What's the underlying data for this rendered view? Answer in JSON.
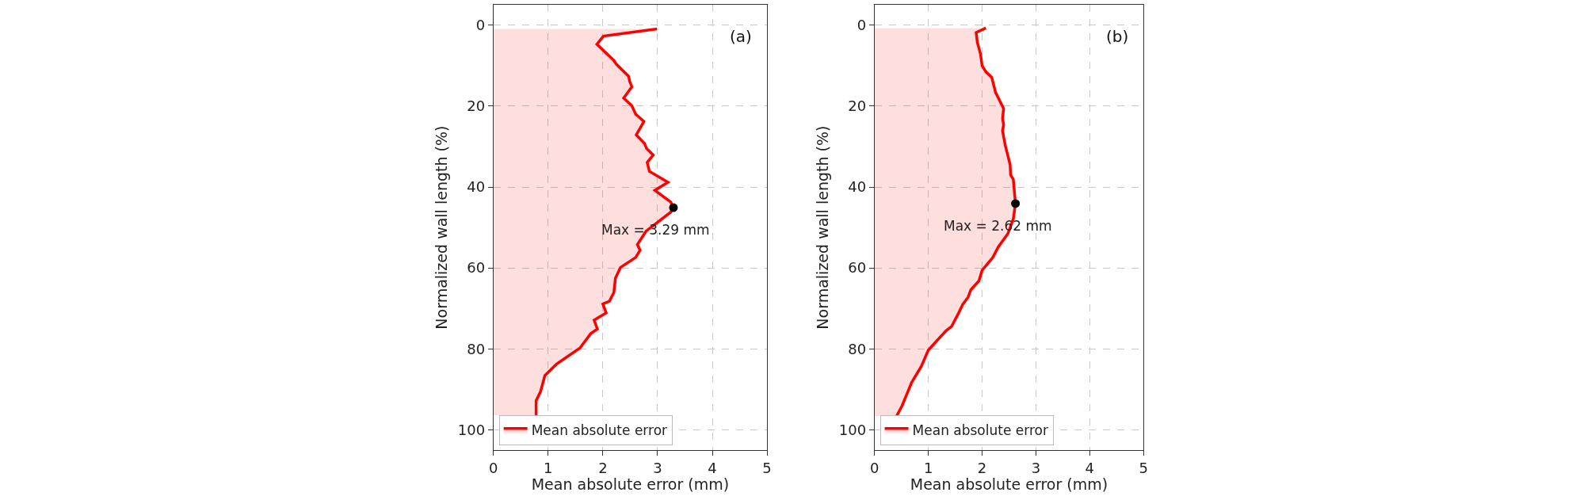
{
  "chart_data": [
    {
      "type": "area",
      "orientation": "horizontal",
      "xlabel": "Mean absolute error (mm)",
      "ylabel": "Normalized wall length (%)",
      "x": [
        0.9,
        2.7,
        4.7,
        8.7,
        9.7,
        12.6,
        13.9,
        15.2,
        18.0,
        19.9,
        22.0,
        22.7,
        23.8,
        27.1,
        29.2,
        30.5,
        32.1,
        33.9,
        36.1,
        38.8,
        40.8,
        43.7,
        45.1,
        46.2,
        50.9,
        54.2,
        55.6,
        57.4,
        59.9,
        62.5,
        66.1,
        68.2,
        68.9,
        71.1,
        72.9,
        75.1,
        76.2,
        79.8,
        83.8,
        86.6,
        90.6,
        92.8,
        96.4
      ],
      "series": [
        {
          "name": "Mean absolute error",
          "color": "#ff0000",
          "values": [
            2.99,
            2.01,
            1.89,
            2.2,
            2.25,
            2.47,
            2.49,
            2.53,
            2.38,
            2.53,
            2.6,
            2.66,
            2.75,
            2.61,
            2.76,
            2.8,
            2.92,
            2.81,
            2.85,
            3.19,
            2.95,
            3.24,
            3.29,
            3.24,
            2.79,
            2.63,
            2.68,
            2.6,
            2.32,
            2.23,
            2.2,
            2.12,
            2.0,
            2.06,
            1.84,
            1.9,
            1.78,
            1.58,
            1.15,
            0.94,
            0.86,
            0.78,
            0.78
          ]
        },
        {
          "type": "scatter",
          "color": "#000000",
          "x": [
            45.1
          ],
          "values": [
            3.29
          ]
        }
      ],
      "annotations": [
        "(a)",
        {
          "text": "Max = 3.29 mm",
          "x": 3.29,
          "y": 45.1
        }
      ],
      "xlim": [
        0,
        5
      ],
      "xticks": [
        0,
        1,
        2,
        3,
        4,
        5
      ],
      "ylim": [
        105,
        -5
      ],
      "yticks": [
        0,
        20,
        40,
        60,
        80,
        100
      ],
      "grid": true,
      "legend": "bottom left"
    },
    {
      "type": "area",
      "orientation": "horizontal",
      "xlabel": "Mean absolute error (mm)",
      "ylabel": "Normalized wall length (%)",
      "x": [
        0.7,
        1.8,
        4.2,
        7.1,
        10.0,
        11.5,
        12.9,
        16.6,
        20.6,
        23.1,
        24.6,
        26.1,
        29.7,
        34.4,
        37.0,
        38.1,
        44.1,
        47.9,
        51.5,
        54.8,
        57.4,
        60.6,
        63.2,
        65.4,
        67.2,
        69.0,
        71.2,
        74.5,
        75.5,
        80.3,
        84.3,
        88.3,
        94.1,
        96.6
      ],
      "series": [
        {
          "name": "Mean absolute error",
          "color": "#ff0000",
          "values": [
            2.07,
            1.89,
            1.91,
            1.97,
            2.0,
            2.07,
            2.18,
            2.25,
            2.4,
            2.38,
            2.4,
            2.38,
            2.43,
            2.52,
            2.53,
            2.58,
            2.62,
            2.58,
            2.48,
            2.3,
            2.2,
            2.0,
            1.94,
            1.79,
            1.74,
            1.64,
            1.56,
            1.43,
            1.33,
            1.0,
            0.87,
            0.69,
            0.51,
            0.41
          ]
        },
        {
          "type": "scatter",
          "color": "#000000",
          "x": [
            44.1
          ],
          "values": [
            2.62
          ]
        }
      ],
      "annotations": [
        "(b)",
        {
          "text": "Max = 2.62 mm",
          "x": 2.62,
          "y": 44.1
        }
      ],
      "xlim": [
        0,
        5
      ],
      "xticks": [
        0,
        1,
        2,
        3,
        4,
        5
      ],
      "ylim": [
        105,
        -5
      ],
      "yticks": [
        0,
        20,
        40,
        60,
        80,
        100
      ],
      "grid": true,
      "legend": "bottom left"
    }
  ]
}
